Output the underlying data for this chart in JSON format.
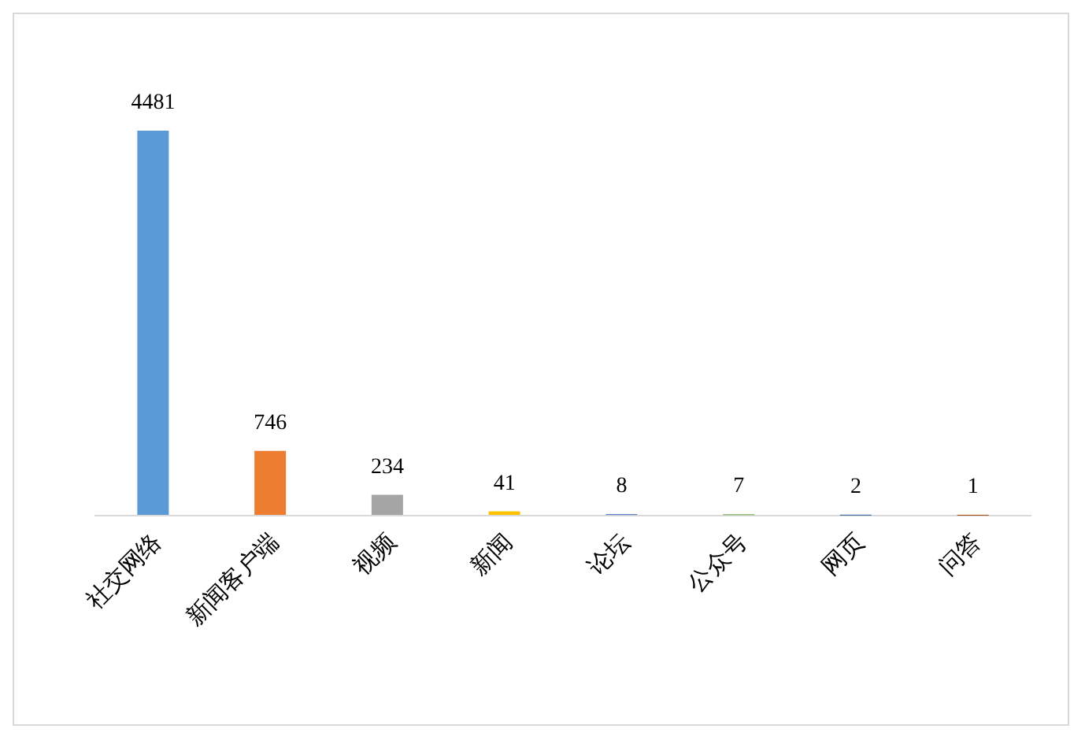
{
  "chart_data": {
    "type": "bar",
    "categories": [
      "社交网络",
      "新闻客户端",
      "视频",
      "新闻",
      "论坛",
      "公众号",
      "网页",
      "问答"
    ],
    "values": [
      4481,
      746,
      234,
      41,
      8,
      7,
      2,
      1
    ],
    "colors": [
      "#5b9bd5",
      "#ed7d31",
      "#a5a5a5",
      "#ffc000",
      "#4472c4",
      "#70ad47",
      "#255e91",
      "#9e480e"
    ],
    "data_labels": true
  }
}
